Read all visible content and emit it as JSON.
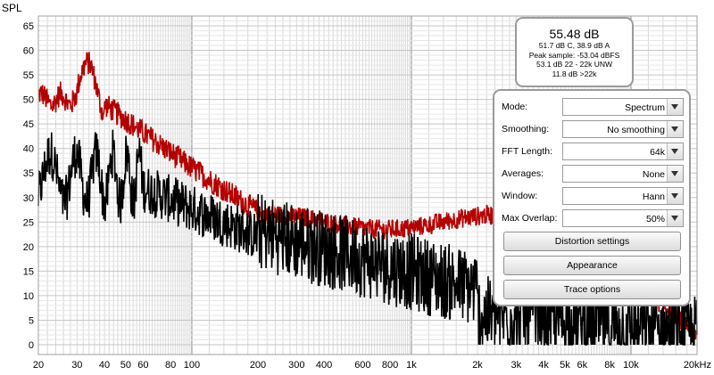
{
  "axis": {
    "y_label": "SPL",
    "y_ticks": [
      "65",
      "60",
      "55",
      "50",
      "45",
      "40",
      "35",
      "30",
      "25",
      "20",
      "15",
      "10",
      "5",
      "0"
    ],
    "x_ticks": [
      "20",
      "30",
      "40",
      "50",
      "60",
      "80",
      "100",
      "200",
      "300",
      "400",
      "600",
      "800",
      "1k",
      "2k",
      "3k",
      "4k",
      "5k",
      "6k",
      "8k",
      "10k",
      "20kHz"
    ],
    "x_tick_freqs": [
      20,
      30,
      40,
      50,
      60,
      80,
      100,
      200,
      300,
      400,
      600,
      800,
      1000,
      2000,
      3000,
      4000,
      5000,
      6000,
      8000,
      10000,
      20000
    ],
    "x_range": [
      20,
      20000
    ],
    "y_range": [
      -2,
      67
    ],
    "x_scale": "log"
  },
  "colors": {
    "trace_red": "#b30000",
    "trace_black": "#000000",
    "grid": "#d8d8d8",
    "grid_major": "#8c8c8c",
    "frame": "#a0a0a0",
    "panel_border": "#9a9a9a"
  },
  "readout": {
    "main": "55.48 dB",
    "lines": [
      "51.7 dB C, 38.9 dB A",
      "Peak sample: -53.04 dBFS",
      "53.1 dB 22 - 22k UNW",
      "11.8 dB >22k"
    ]
  },
  "controls": {
    "mode": {
      "label": "Mode:",
      "value": "Spectrum"
    },
    "smoothing": {
      "label": "Smoothing:",
      "value": "No  smoothing"
    },
    "fft_length": {
      "label": "FFT Length:",
      "value": "64k"
    },
    "averages": {
      "label": "Averages:",
      "value": "None"
    },
    "window": {
      "label": "Window:",
      "value": "Hann"
    },
    "max_overlap": {
      "label": "Max Overlap:",
      "value": "50%"
    }
  },
  "buttons": {
    "distortion": "Distortion settings",
    "appearance": "Appearance",
    "trace_options": "Trace options"
  }
}
